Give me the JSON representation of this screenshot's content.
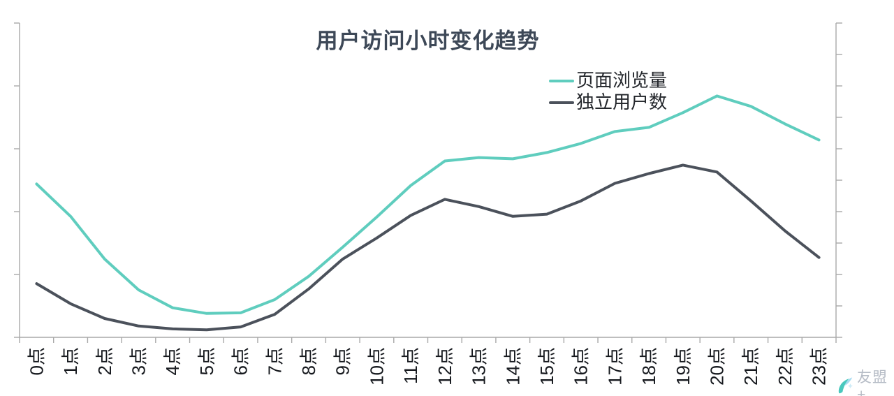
{
  "watermark": {
    "text": "友盟+"
  },
  "colors": {
    "axis": "#a9a9a9",
    "title_text": "#3d4857",
    "x_label_text": "#16191e",
    "legend_text": "#23262b",
    "watermark_text": "#b6bcc6",
    "watermark_icon_teal": "#49c8bd",
    "watermark_icon_blue": "#a5daf1"
  },
  "chart_data": {
    "type": "line",
    "title": "用户访问小时变化趋势",
    "categories": [
      "0点",
      "1点",
      "2点",
      "3点",
      "4点",
      "5点",
      "6点",
      "7点",
      "8点",
      "9点",
      "10点",
      "11点",
      "12点",
      "13点",
      "14点",
      "15点",
      "16点",
      "17点",
      "18点",
      "19点",
      "20点",
      "21点",
      "22点",
      "23点"
    ],
    "series": [
      {
        "name": "页面浏览量",
        "color": "#5fcdbe",
        "values": [
          48.8,
          38.5,
          24.9,
          15.1,
          9.4,
          7.6,
          7.8,
          12.0,
          19.4,
          28.7,
          38.3,
          48.3,
          56.1,
          57.2,
          56.8,
          58.8,
          61.7,
          65.5,
          66.8,
          71.5,
          76.8,
          73.5,
          67.9,
          62.8
        ]
      },
      {
        "name": "独立用户数",
        "color": "#4b515b",
        "values": [
          17.1,
          10.7,
          6.0,
          3.6,
          2.7,
          2.4,
          3.3,
          7.3,
          15.4,
          24.9,
          31.6,
          38.8,
          43.9,
          41.6,
          38.5,
          39.2,
          43.4,
          49.0,
          52.1,
          54.8,
          52.6,
          43.4,
          33.9,
          25.4
        ]
      }
    ],
    "xlabel": "",
    "ylabel": "",
    "ylim": [
      0,
      100
    ],
    "y_axis_labels_visible": false,
    "x_label_rotation_deg": -90,
    "grid": false,
    "legend_position": "inside-top-right"
  }
}
